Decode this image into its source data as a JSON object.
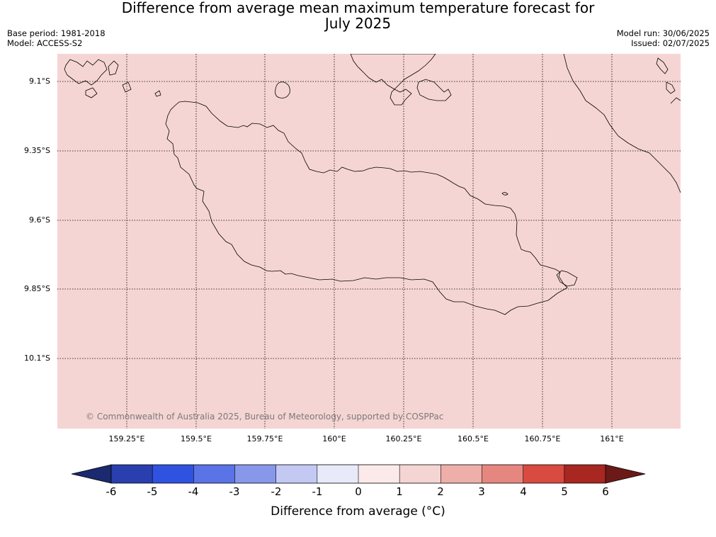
{
  "title_line1": "Difference from average mean maximum temperature forecast for",
  "title_line2": "July 2025",
  "base_period": "Base period: 1981-2018",
  "model": "Model: ACCESS-S2",
  "model_run": "Model run: 30/06/2025",
  "issued": "Issued: 02/07/2025",
  "copyright": "© Commonwealth of Australia 2025, Bureau of Meteorology, supported by COSPPac",
  "map_fill_color": "#f5d5d3",
  "lat_ticks": [
    "9.1°S",
    "9.35°S",
    "9.6°S",
    "9.85°S",
    "10.1°S"
  ],
  "lon_ticks": [
    "159.25°E",
    "159.5°E",
    "159.75°E",
    "160°E",
    "160.25°E",
    "160.5°E",
    "160.75°E",
    "161°E"
  ],
  "colorbar": {
    "title": "Difference from average (°C)",
    "labels": [
      "-6",
      "-5",
      "-4",
      "-3",
      "-2",
      "-1",
      "0",
      "1",
      "2",
      "3",
      "4",
      "5",
      "6"
    ],
    "low_extend_color": "#1b2a6e",
    "high_extend_color": "#6b1a17",
    "colors": [
      "#2a3fae",
      "#2f52e0",
      "#5a73e6",
      "#8797ea",
      "#c3c9f3",
      "#e8eafa",
      "#fceaea",
      "#f5d5d3",
      "#eeaeaa",
      "#e6877f",
      "#d94a40",
      "#a82720"
    ]
  }
}
